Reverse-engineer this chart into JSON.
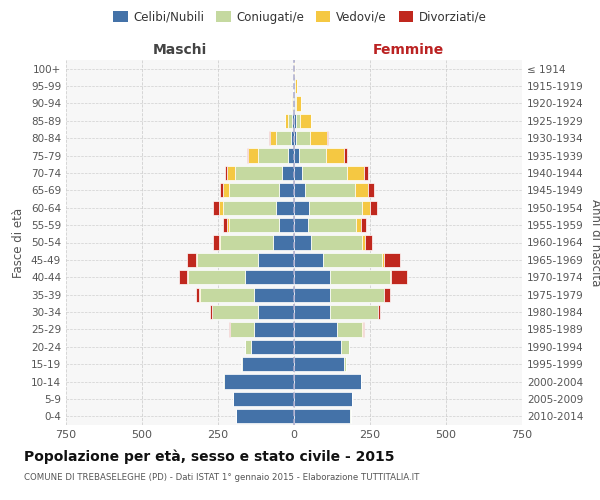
{
  "age_groups": [
    "0-4",
    "5-9",
    "10-14",
    "15-19",
    "20-24",
    "25-29",
    "30-34",
    "35-39",
    "40-44",
    "45-49",
    "50-54",
    "55-59",
    "60-64",
    "65-69",
    "70-74",
    "75-79",
    "80-84",
    "85-89",
    "90-94",
    "95-99",
    "100+"
  ],
  "birth_years": [
    "2010-2014",
    "2005-2009",
    "2000-2004",
    "1995-1999",
    "1990-1994",
    "1985-1989",
    "1980-1984",
    "1975-1979",
    "1970-1974",
    "1965-1969",
    "1960-1964",
    "1955-1959",
    "1950-1954",
    "1945-1949",
    "1940-1944",
    "1935-1939",
    "1930-1934",
    "1925-1929",
    "1920-1924",
    "1915-1919",
    "≤ 1914"
  ],
  "maschi": {
    "celibi": [
      190,
      200,
      230,
      170,
      140,
      130,
      120,
      130,
      160,
      120,
      70,
      50,
      60,
      50,
      40,
      20,
      10,
      5,
      3,
      2,
      1
    ],
    "coniugati": [
      1,
      1,
      2,
      5,
      20,
      80,
      150,
      180,
      190,
      200,
      175,
      165,
      175,
      165,
      155,
      100,
      50,
      15,
      5,
      2,
      0
    ],
    "vedovi": [
      0,
      0,
      0,
      0,
      0,
      1,
      1,
      2,
      2,
      2,
      2,
      5,
      12,
      18,
      25,
      30,
      20,
      8,
      2,
      0,
      0
    ],
    "divorziati": [
      0,
      0,
      0,
      0,
      1,
      3,
      5,
      10,
      25,
      30,
      20,
      15,
      18,
      12,
      8,
      5,
      2,
      0,
      0,
      0,
      0
    ]
  },
  "femmine": {
    "nubili": [
      185,
      190,
      220,
      165,
      155,
      140,
      120,
      120,
      120,
      95,
      55,
      45,
      50,
      35,
      25,
      15,
      8,
      5,
      3,
      2,
      1
    ],
    "coniugate": [
      1,
      1,
      2,
      5,
      25,
      85,
      155,
      175,
      195,
      195,
      170,
      160,
      175,
      165,
      150,
      90,
      45,
      15,
      5,
      2,
      0
    ],
    "vedove": [
      0,
      0,
      0,
      0,
      0,
      1,
      1,
      2,
      3,
      5,
      10,
      15,
      25,
      45,
      55,
      60,
      55,
      35,
      15,
      5,
      1
    ],
    "divorziate": [
      0,
      0,
      0,
      0,
      2,
      4,
      8,
      20,
      55,
      55,
      20,
      18,
      22,
      18,
      12,
      8,
      4,
      2,
      0,
      0,
      0
    ]
  },
  "colors": {
    "celibi": "#4472a8",
    "coniugati": "#c5d9a0",
    "vedovi": "#f5c842",
    "divorziati": "#c0281e"
  },
  "xlim": 750,
  "title": "Popolazione per età, sesso e stato civile - 2015",
  "subtitle": "COMUNE DI TREBASELEGHE (PD) - Dati ISTAT 1° gennaio 2015 - Elaborazione TUTTITALIA.IT",
  "xlabel_left": "Maschi",
  "xlabel_right": "Femmine",
  "ylabel_left": "Fasce di età",
  "ylabel_right": "Anni di nascita",
  "bg_color": "#ffffff",
  "plot_bg": "#f7f7f7",
  "grid_color": "#cccccc"
}
